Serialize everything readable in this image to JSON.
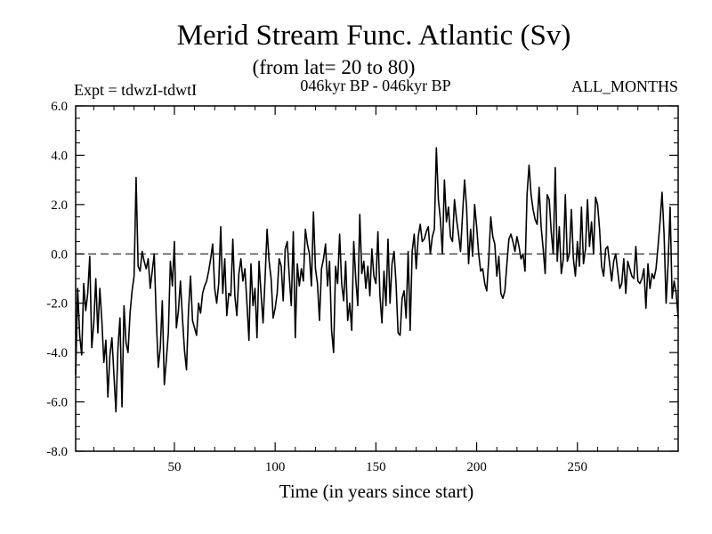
{
  "chart_data": {
    "type": "line",
    "title": "Merid Stream Func. Atlantic (Sv)",
    "subtitle": "(from lat= 20 to 80)",
    "header_left": "Expt = tdwzI-tdwtI",
    "header_center": "046kyr BP - 046kyr BP",
    "header_right": "ALL_MONTHS",
    "xlabel": "Time (in years since start)",
    "ylabel": "",
    "xlim": [
      1,
      300
    ],
    "ylim": [
      -8,
      6
    ],
    "x_ticks": [
      50,
      100,
      150,
      200,
      250
    ],
    "x_tick_labels": [
      "50",
      "100",
      "150",
      "200",
      "250"
    ],
    "y_ticks": [
      -8,
      -6,
      -4,
      -2,
      0,
      2,
      4,
      6
    ],
    "y_tick_labels": [
      "-8.0",
      "-6.0",
      "-4.0",
      "-2.0",
      "0.0",
      "2.0",
      "4.0",
      "6.0"
    ],
    "reference_line": {
      "y": 0,
      "style": "dashed"
    },
    "grid": false,
    "series": [
      {
        "x_start": 1,
        "x_step": 1,
        "values": [
          -4.9,
          -1.4,
          -3.3,
          -4.1,
          -1.2,
          -2.3,
          -1.6,
          -0.1,
          -3.8,
          -2.8,
          -1.0,
          -3.2,
          -1.4,
          -2.7,
          -4.4,
          -3.5,
          -5.8,
          -4.1,
          -3.4,
          -4.9,
          -6.4,
          -3.8,
          -2.6,
          -6.2,
          -2.1,
          -3.6,
          -4.0,
          -2.4,
          -1.5,
          -0.9,
          3.1,
          -0.5,
          -0.7,
          0.1,
          -0.3,
          -0.6,
          -0.2,
          -1.4,
          -0.7,
          0.0,
          -2.6,
          -4.6,
          -3.8,
          -1.9,
          -5.3,
          -4.3,
          -3.2,
          -0.3,
          -1.3,
          0.5,
          -3.0,
          -2.3,
          -1.1,
          -2.6,
          -3.9,
          -4.7,
          -2.3,
          -0.9,
          -2.7,
          -3.0,
          -3.3,
          -2.0,
          -2.4,
          -1.6,
          -1.3,
          -1.1,
          -0.7,
          -0.2,
          0.4,
          -1.4,
          -2.0,
          -1.2,
          1.1,
          -1.6,
          -0.2,
          -2.5,
          -1.6,
          -1.7,
          0.6,
          -1.7,
          -2.5,
          -0.8,
          -0.2,
          -1.1,
          -0.6,
          -2.0,
          -3.5,
          -0.4,
          -2.1,
          -1.4,
          -3.4,
          -0.3,
          -1.6,
          -2.8,
          -1.0,
          1.0,
          -0.3,
          -1.0,
          -2.6,
          -2.2,
          -1.6,
          -0.2,
          -0.5,
          -1.9,
          0.2,
          0.5,
          -0.9,
          -2.1,
          0.9,
          -3.4,
          -0.4,
          -1.3,
          -0.6,
          -1.1,
          1.0,
          0.4,
          0.0,
          -1.3,
          1.7,
          -0.6,
          -1.2,
          -2.7,
          -0.6,
          -0.2,
          0.4,
          -1.3,
          -0.3,
          -3.1,
          -4.0,
          -0.5,
          -1.2,
          0.8,
          -1.2,
          -1.9,
          -0.3,
          -2.7,
          -2.0,
          -3.1,
          0.5,
          -1.0,
          -2.1,
          1.6,
          -0.8,
          -0.3,
          -1.4,
          -0.5,
          -1.7,
          0.2,
          -0.9,
          -1.2,
          0.9,
          -1.7,
          -2.8,
          -0.7,
          -2.1,
          0.6,
          -2.0,
          -0.4,
          0.1,
          -1.2,
          -3.2,
          -3.3,
          -1.8,
          -1.5,
          -2.6,
          0.1,
          -3.1,
          0.1,
          0.8,
          -0.6,
          0.7,
          1.2,
          0.5,
          0.6,
          0.9,
          1.1,
          0.0,
          0.7,
          1.0,
          4.3,
          2.2,
          1.4,
          0.0,
          3.0,
          1.3,
          1.9,
          0.7,
          0.5,
          2.2,
          1.4,
          0.8,
          0.1,
          1.6,
          3.0,
          1.9,
          -0.4,
          1.0,
          -0.1,
          2.0,
          1.1,
          0.0,
          -0.7,
          -0.6,
          -1.2,
          -1.5,
          -0.2,
          1.5,
          0.7,
          0.4,
          -0.9,
          -0.1,
          -1.6,
          -1.8,
          -1.5,
          -0.4,
          0.6,
          0.8,
          0.5,
          0.1,
          0.7,
          0.3,
          -0.2,
          0.0,
          -0.7,
          2.4,
          3.6,
          2.4,
          1.8,
          1.4,
          1.2,
          2.7,
          1.1,
          0.2,
          -0.8,
          2.4,
          2.2,
          0.9,
          0.0,
          3.5,
          -0.3,
          1.1,
          -0.8,
          -0.2,
          2.4,
          -0.3,
          0.0,
          1.8,
          -0.2,
          -0.9,
          0.5,
          -0.5,
          1.9,
          -0.4,
          0.2,
          2.2,
          0.3,
          1.3,
          0.0,
          2.3,
          2.0,
          1.0,
          -0.5,
          -0.9,
          0.2,
          0.3,
          -0.4,
          -1.1,
          -0.3,
          0.0,
          -0.7,
          -1.4,
          -1.2,
          -0.2,
          -1.6,
          -0.3,
          -0.6,
          -0.9,
          -1.0,
          0.3,
          -1.1,
          -1.2,
          -1.0,
          -0.6,
          -2.2,
          -0.4,
          -1.4,
          -0.8,
          -1.0,
          -0.6,
          0.3,
          1.3,
          2.5,
          0.8,
          -2.0,
          -0.4,
          1.9,
          -1.8,
          -1.1,
          -1.6,
          -2.6
        ]
      }
    ]
  }
}
